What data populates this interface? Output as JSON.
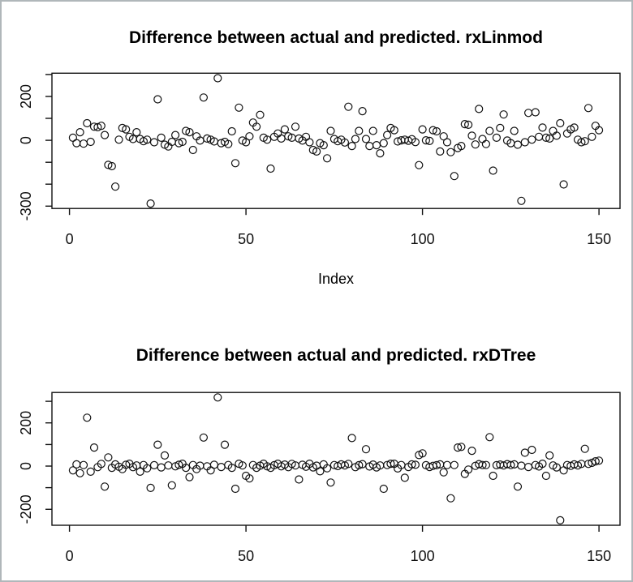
{
  "figure": {
    "background": "#ffffff",
    "border_color": "#b0b7ba",
    "ink_color": "#111111"
  },
  "chart_data": [
    {
      "type": "scatter",
      "title": "Difference between actual and predicted. rxLinmod",
      "xlabel": "Index",
      "ylabel": "",
      "marker": "open-circle",
      "x_start": 1,
      "xticks": [
        0,
        50,
        100,
        150
      ],
      "yticks": [
        300,
        200,
        100,
        0,
        -100,
        -200,
        -300
      ],
      "ytick_labels_shown": [
        "200",
        "0",
        "-300"
      ],
      "xlim": [
        -5,
        156
      ],
      "ylim": [
        -311,
        306
      ],
      "grid": false,
      "legend": "none",
      "values": [
        12,
        -13,
        37,
        -15,
        78,
        -7,
        62,
        60,
        66,
        24,
        -112,
        -118,
        -211,
        3,
        56,
        50,
        16,
        6,
        37,
        6,
        -4,
        3,
        -288,
        -9,
        187,
        12,
        -20,
        -28,
        -7,
        24,
        -13,
        -7,
        43,
        37,
        -44,
        18,
        -1,
        195,
        8,
        3,
        -5,
        283,
        -13,
        -7,
        -17,
        41,
        -104,
        149,
        -1,
        -9,
        18,
        81,
        62,
        116,
        12,
        3,
        -129,
        16,
        31,
        8,
        50,
        18,
        12,
        62,
        8,
        -1,
        16,
        -9,
        -44,
        -51,
        -13,
        -22,
        -82,
        43,
        6,
        -4,
        3,
        -10,
        153,
        -26,
        6,
        43,
        133,
        6,
        -26,
        43,
        -22,
        -59,
        -13,
        24,
        56,
        46,
        -5,
        0,
        3,
        -2,
        5,
        -8,
        -113,
        50,
        0,
        -3,
        46,
        41,
        -51,
        18,
        -9,
        -54,
        -163,
        -35,
        -26,
        74,
        71,
        21,
        -19,
        143,
        6,
        -17,
        43,
        -138,
        12,
        56,
        118,
        -1,
        -13,
        43,
        -20,
        -276,
        -9,
        125,
        3,
        128,
        16,
        58,
        12,
        8,
        43,
        21,
        78,
        -201,
        31,
        50,
        58,
        3,
        -9,
        -4,
        147,
        16,
        66,
        46
      ]
    },
    {
      "type": "scatter",
      "title": "Difference between actual and predicted. rxDTree",
      "xlabel": "",
      "ylabel": "",
      "marker": "open-circle",
      "x_start": 1,
      "xticks": [
        0,
        50,
        100,
        150
      ],
      "yticks": [
        300,
        200,
        100,
        0,
        -100,
        -200
      ],
      "ytick_labels_shown": [
        "200",
        "0",
        "-200"
      ],
      "xlim": [
        -5,
        156
      ],
      "ylim": [
        -274,
        341
      ],
      "grid": false,
      "legend": "none",
      "values": [
        -20,
        8,
        -33,
        5,
        224,
        -26,
        86,
        -5,
        10,
        -95,
        40,
        -8,
        8,
        -3,
        -14,
        6,
        11,
        -5,
        3,
        -26,
        5,
        -10,
        -101,
        4,
        99,
        -6,
        49,
        3,
        -89,
        -1,
        6,
        11,
        -8,
        -51,
        5,
        -14,
        2,
        132,
        -1,
        -20,
        6,
        318,
        -4,
        99,
        5,
        -8,
        -105,
        11,
        3,
        -45,
        -57,
        5,
        -8,
        2,
        11,
        -1,
        -8,
        4,
        11,
        -1,
        7,
        -5,
        10,
        3,
        -62,
        6,
        -3,
        11,
        -6,
        2,
        -24,
        8,
        -10,
        -76,
        5,
        0,
        8,
        3,
        10,
        130,
        -5,
        4,
        9,
        78,
        -2,
        7,
        -6,
        3,
        -105,
        5,
        11,
        11,
        -11,
        5,
        -54,
        -4,
        8,
        6,
        51,
        59,
        4,
        -4,
        1,
        4,
        8,
        -29,
        5,
        -149,
        5,
        86,
        89,
        -36,
        -16,
        71,
        1,
        9,
        5,
        5,
        134,
        -45,
        4,
        7,
        3,
        9,
        5,
        8,
        -95,
        2,
        62,
        -4,
        75,
        5,
        -2,
        11,
        -45,
        49,
        3,
        -6,
        -251,
        -20,
        5,
        1,
        8,
        3,
        10,
        80,
        10,
        15,
        22,
        25
      ]
    }
  ]
}
